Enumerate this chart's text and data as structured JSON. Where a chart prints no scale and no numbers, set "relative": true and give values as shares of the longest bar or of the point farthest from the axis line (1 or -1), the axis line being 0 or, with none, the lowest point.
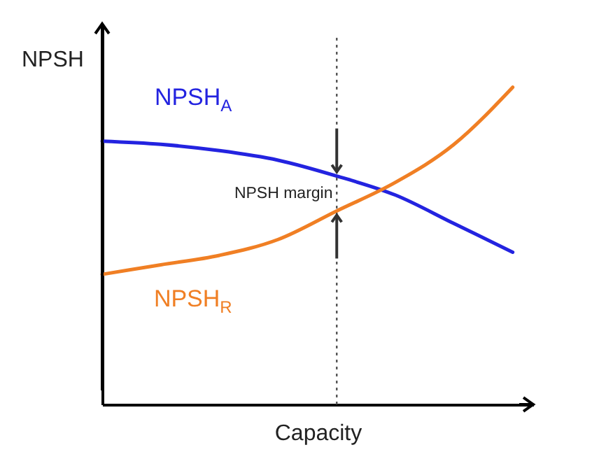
{
  "chart_data": {
    "type": "line",
    "xlabel": "Capacity",
    "ylabel": "NPSH",
    "relative": true,
    "categories": [
      null,
      null,
      null,
      null,
      null,
      null,
      null,
      null
    ],
    "series": [
      {
        "name": "NPSH$_{A}$",
        "color": "#2323e0",
        "values": [
          0.83,
          0.82,
          0.8,
          0.77,
          0.72,
          0.66,
          0.57,
          0.48
        ]
      },
      {
        "name": "NPSH$_{R}$",
        "color": "#f07f24",
        "values": [
          0.41,
          0.44,
          0.47,
          0.52,
          0.61,
          0.7,
          0.82,
          1
        ]
      }
    ],
    "annotations": [
      "NPSH margin"
    ],
    "grid": false,
    "legend": false,
    "marker": "none",
    "line_style": "solid"
  }
}
